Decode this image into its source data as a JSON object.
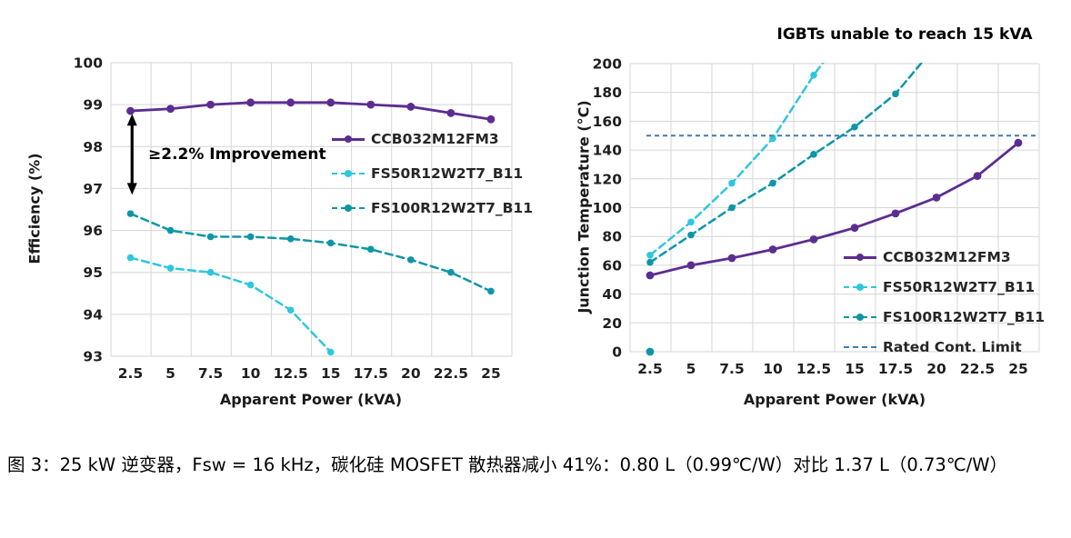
{
  "figure": {
    "caption": "图 3：25 kW 逆变器，Fsw = 16 kHz，碳化硅 MOSFET 散热器减小 41%：0.80 L（0.99℃/W）对比 1.37 L（0.73℃/W）"
  },
  "colors": {
    "ccb_purple": "#5c2d91",
    "fs50_cyan": "#2ec7dd",
    "fs100_teal": "#0e96a6",
    "rated_blue": "#3d7ab5",
    "grid_gray": "#d6d6d6",
    "tick_text": "#1f1f1f"
  },
  "chart_data": [
    {
      "type": "line",
      "position": "left",
      "title": "",
      "ylabel": "Efficiency (%)",
      "xlabel": "Apparent Power (kVA)",
      "x": [
        2.5,
        5,
        7.5,
        10,
        12.5,
        15,
        17.5,
        20,
        22.5,
        25
      ],
      "x_step": 2.5,
      "ylim": [
        93,
        100
      ],
      "yticks": [
        93,
        94,
        95,
        96,
        97,
        98,
        99,
        100
      ],
      "grid": true,
      "legend_position": "inside-right",
      "annotation": {
        "text": "≥2.2% Improvement",
        "x": 2.6,
        "y_from": 98.78,
        "y_to": 96.85
      },
      "series": [
        {
          "name": "CCB032M12FM3",
          "color": "#5c2d91",
          "dash": "solid",
          "marker": "circle",
          "values": [
            98.85,
            98.9,
            99.0,
            99.05,
            99.05,
            99.05,
            99.0,
            98.95,
            98.8,
            98.65
          ]
        },
        {
          "name": "FS50R12W2T7_B11",
          "color": "#2ec7dd",
          "dash": "dashed",
          "marker": "circle",
          "values": [
            95.35,
            95.1,
            95.0,
            94.7,
            94.1,
            93.1
          ]
        },
        {
          "name": "FS100R12W2T7_B11",
          "color": "#0e96a6",
          "dash": "dashed",
          "marker": "circle",
          "values": [
            96.4,
            96.0,
            95.85,
            95.85,
            95.8,
            95.7,
            95.55,
            95.3,
            95.0,
            94.55
          ]
        }
      ]
    },
    {
      "type": "line",
      "position": "right",
      "title": "IGBTs unable to reach 15 kVA",
      "ylabel": "Junction Temperature (°C)",
      "xlabel": "Apparent Power (kVA)",
      "x": [
        2.5,
        5,
        7.5,
        10,
        12.5,
        15,
        17.5,
        20,
        22.5,
        25
      ],
      "x_step": 2.5,
      "ylim": [
        0,
        200
      ],
      "yticks": [
        0,
        20,
        40,
        60,
        80,
        100,
        120,
        140,
        160,
        180,
        200
      ],
      "grid": true,
      "legend_position": "inside-right",
      "series": [
        {
          "name": "CCB032M12FM3",
          "color": "#5c2d91",
          "dash": "solid",
          "marker": "circle",
          "values": [
            53,
            60,
            65,
            71,
            78,
            86,
            96,
            107,
            122,
            145
          ]
        },
        {
          "name": "FS50R12W2T7_B11",
          "color": "#2ec7dd",
          "dash": "dashed",
          "marker": "circle",
          "values": [
            67,
            90,
            117,
            148,
            192
          ],
          "continues_offscreen_to_x": 13.6
        },
        {
          "name": "FS100R12W2T7_B11",
          "color": "#0e96a6",
          "dash": "dashed",
          "marker": "circle",
          "values": [
            62,
            81,
            100,
            117,
            137,
            156,
            179
          ],
          "continues_offscreen_to_x": 19.7,
          "extra_points": [
            [
              2.5,
              0
            ]
          ]
        },
        {
          "name": "Rated Cont. Limit",
          "kind": "hline",
          "color": "#3d7ab5",
          "dash": "short-dash",
          "value": 150
        }
      ]
    }
  ]
}
